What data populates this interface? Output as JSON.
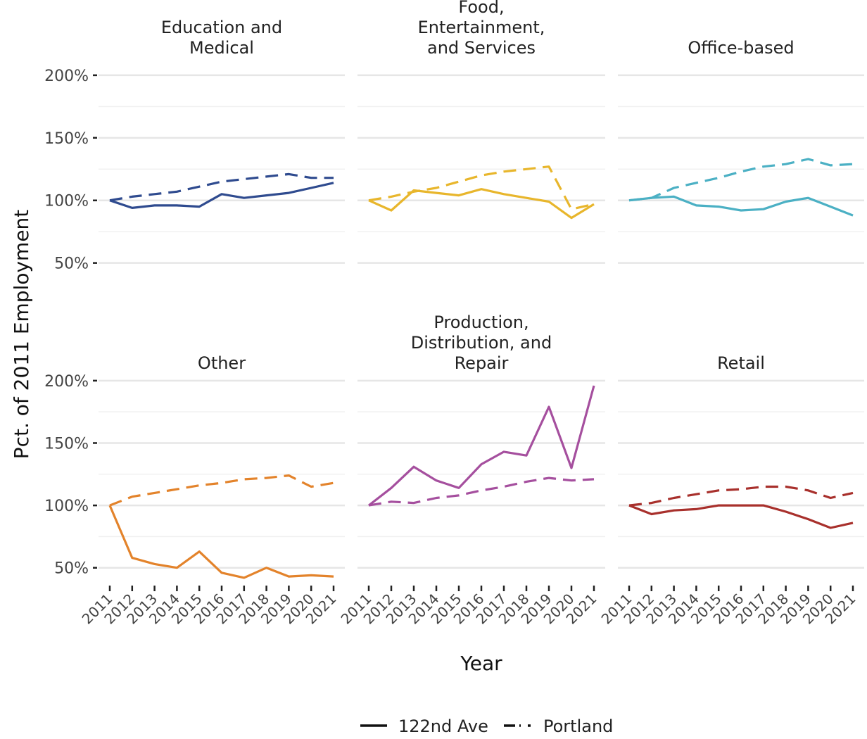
{
  "chart_data": {
    "type": "line",
    "ylabel": "Pct. of 2011 Employment",
    "xlabel": "Year",
    "x": [
      "2011",
      "2012",
      "2013",
      "2014",
      "2015",
      "2016",
      "2017",
      "2018",
      "2019",
      "2020",
      "2021"
    ],
    "y_ticks": [
      "50%",
      "100%",
      "150%",
      "200%"
    ],
    "y_tick_values": [
      50,
      100,
      150,
      200
    ],
    "ylim": [
      38,
      205
    ],
    "legend": {
      "placement": "bottom",
      "entries": [
        {
          "label": "122nd Ave",
          "linetype": "solid"
        },
        {
          "label": "Portland",
          "linetype": "dashed"
        }
      ]
    },
    "grid": true,
    "panels": [
      {
        "title": [
          "Education and",
          "Medical"
        ],
        "color": "#2f4b8f",
        "series": [
          {
            "name": "122nd Ave",
            "values": [
              100,
              94,
              96,
              96,
              95,
              105,
              102,
              104,
              106,
              110,
              114
            ]
          },
          {
            "name": "Portland",
            "values": [
              100,
              103,
              105,
              107,
              111,
              115,
              117,
              119,
              121,
              118,
              118
            ]
          }
        ]
      },
      {
        "title": [
          "Food,",
          "Entertainment,",
          "and Services"
        ],
        "color": "#e8b62c",
        "series": [
          {
            "name": "122nd Ave",
            "values": [
              100,
              92,
              108,
              106,
              104,
              109,
              105,
              102,
              99,
              86,
              97
            ]
          },
          {
            "name": "Portland",
            "values": [
              100,
              103,
              107,
              110,
              115,
              120,
              123,
              125,
              127,
              93,
              97
            ]
          }
        ]
      },
      {
        "title": [
          "Office-based"
        ],
        "color": "#4bb0c4",
        "series": [
          {
            "name": "122nd Ave",
            "values": [
              100,
              102,
              103,
              96,
              95,
              92,
              93,
              99,
              102,
              95,
              88
            ]
          },
          {
            "name": "Portland",
            "values": [
              100,
              102,
              110,
              114,
              118,
              123,
              127,
              129,
              133,
              128,
              129
            ]
          }
        ]
      },
      {
        "title": [
          "Other"
        ],
        "color": "#e3832b",
        "series": [
          {
            "name": "122nd Ave",
            "values": [
              100,
              58,
              53,
              50,
              63,
              46,
              42,
              50,
              43,
              44,
              43
            ]
          },
          {
            "name": "Portland",
            "values": [
              100,
              107,
              110,
              113,
              116,
              118,
              121,
              122,
              124,
              115,
              118
            ]
          }
        ]
      },
      {
        "title": [
          "Production,",
          "Distribution, and",
          "Repair"
        ],
        "color": "#a54f9e",
        "series": [
          {
            "name": "122nd Ave",
            "values": [
              100,
              114,
              131,
              120,
              114,
              133,
              143,
              140,
              179,
              130,
              196
            ]
          },
          {
            "name": "Portland",
            "values": [
              100,
              103,
              102,
              106,
              108,
              112,
              115,
              119,
              122,
              120,
              121
            ]
          }
        ]
      },
      {
        "title": [
          "Retail"
        ],
        "color": "#a8302c",
        "series": [
          {
            "name": "122nd Ave",
            "values": [
              100,
              93,
              96,
              97,
              100,
              100,
              100,
              95,
              89,
              82,
              86
            ]
          },
          {
            "name": "Portland",
            "values": [
              100,
              102,
              106,
              109,
              112,
              113,
              115,
              115,
              112,
              106,
              110
            ]
          }
        ]
      }
    ]
  }
}
